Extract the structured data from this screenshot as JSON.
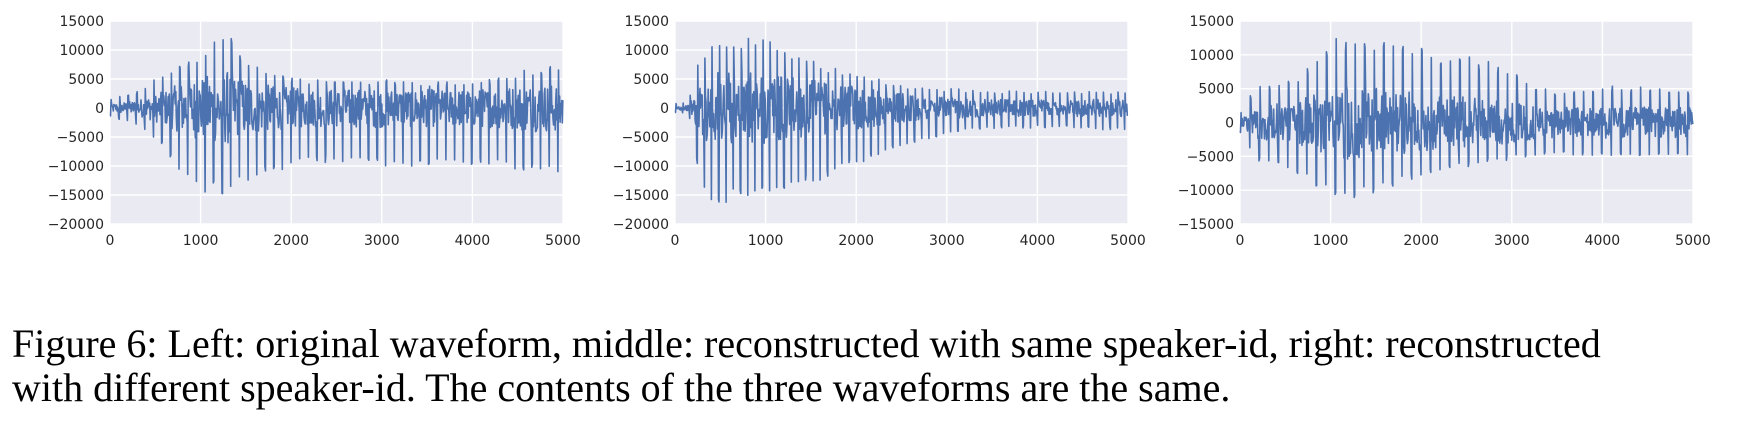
{
  "chart_data": [
    {
      "type": "line",
      "panel": "left",
      "xlim": [
        0,
        5000
      ],
      "ylim": [
        -20000,
        15000
      ],
      "xticks": [
        0,
        1000,
        2000,
        3000,
        4000,
        5000
      ],
      "yticks": [
        -20000,
        -15000,
        -10000,
        -5000,
        0,
        5000,
        10000,
        15000
      ],
      "grid": true,
      "series": [
        {
          "color": "#4c72b0",
          "envelope": {
            "x": [
              0,
              300,
              600,
              800,
              1000,
              1200,
              1300,
              1500,
              1800,
              2200,
              2600,
              3000,
              3400,
              3800,
              4200,
              4600,
              5000
            ],
            "max": [
              1500,
              3000,
              6000,
              8000,
              10000,
              12500,
              13000,
              8000,
              6000,
              5000,
              5000,
              5000,
              4500,
              4500,
              5000,
              7000,
              7500
            ],
            "min": [
              -1500,
              -3000,
              -7000,
              -12000,
              -14500,
              -14500,
              -15500,
              -13000,
              -11000,
              -9500,
              -9500,
              -10000,
              -10000,
              -9500,
              -10000,
              -11000,
              -11000
            ]
          },
          "cycle_period": 95
        }
      ]
    },
    {
      "type": "line",
      "panel": "middle",
      "xlim": [
        0,
        5000
      ],
      "ylim": [
        -20000,
        15000
      ],
      "xticks": [
        0,
        1000,
        2000,
        3000,
        4000,
        5000
      ],
      "yticks": [
        -20000,
        -15000,
        -10000,
        -5000,
        0,
        5000,
        10000,
        15000
      ],
      "grid": true,
      "series": [
        {
          "color": "#4c72b0",
          "envelope": {
            "x": [
              0,
              150,
              250,
              400,
              600,
              900,
              1200,
              1600,
              2000,
              2500,
              3000,
              3500,
              4000,
              4500,
              5000
            ],
            "max": [
              800,
              1000,
              8000,
              12000,
              12000,
              12500,
              11000,
              8000,
              6000,
              4000,
              3500,
              3000,
              3000,
              3000,
              3000
            ],
            "min": [
              -800,
              -1000,
              -10000,
              -17500,
              -16000,
              -15000,
              -14500,
              -12500,
              -10000,
              -7000,
              -4500,
              -3500,
              -3500,
              -3500,
              -4000
            ]
          },
          "cycle_period": 80
        }
      ]
    },
    {
      "type": "line",
      "panel": "right",
      "xlim": [
        0,
        5000
      ],
      "ylim": [
        -15000,
        15000
      ],
      "xticks": [
        0,
        1000,
        2000,
        3000,
        4000,
        5000
      ],
      "yticks": [
        -15000,
        -10000,
        -5000,
        0,
        5000,
        10000,
        15000
      ],
      "grid": true,
      "series": [
        {
          "color": "#4c72b0",
          "envelope": {
            "x": [
              0,
              200,
              500,
              800,
              1000,
              1100,
              1300,
              1600,
              2000,
              2400,
              2800,
              3000,
              3400,
              3800,
              4200,
              4600,
              5000
            ],
            "max": [
              1500,
              6000,
              6000,
              8500,
              12000,
              13000,
              12500,
              12000,
              11000,
              10500,
              9000,
              7500,
              5000,
              5000,
              5500,
              5000,
              5000
            ],
            "min": [
              -1500,
              -6000,
              -6500,
              -9000,
              -11000,
              -12000,
              -11500,
              -10000,
              -8000,
              -7000,
              -6000,
              -5500,
              -5000,
              -5000,
              -5000,
              -5000,
              -5000
            ]
          },
          "cycle_period": 105
        }
      ]
    }
  ],
  "caption": {
    "line1": "Figure 6: Left: original waveform, middle: reconstructed with same speaker-id, right: reconstructed",
    "line2": "with different speaker-id. The contents of the three waveforms are the same."
  }
}
